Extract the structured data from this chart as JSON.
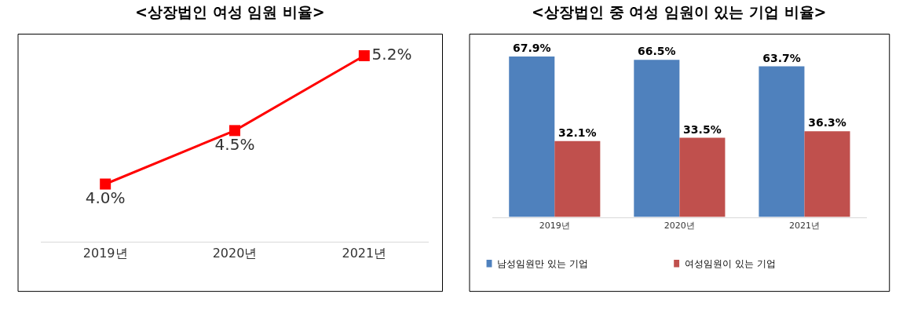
{
  "chart_data": [
    {
      "type": "line",
      "title": "<상장법인 여성 임원 비율>",
      "categories": [
        "2019년",
        "2020년",
        "2021년"
      ],
      "series": [
        {
          "color": "#ff0000",
          "values": [
            4.0,
            4.5,
            5.2
          ],
          "value_labels": [
            "4.0%",
            "4.5%",
            "5.2%"
          ]
        }
      ],
      "marker": "square",
      "tick_labels": "x"
    },
    {
      "type": "bar",
      "title": "<상장법인 중 여성 임원이 있는 기업 비율>",
      "categories": [
        "2019년",
        "2020년",
        "2021년"
      ],
      "series": [
        {
          "name": "남성임원만 있는 기업",
          "color": "#4f81bd",
          "values": [
            67.9,
            66.5,
            63.7
          ],
          "value_labels": [
            "67.9%",
            "66.5%",
            "63.7%"
          ]
        },
        {
          "name": "여성임원이 있는 기업",
          "color": "#c0504d",
          "values": [
            32.1,
            33.5,
            36.3
          ],
          "value_labels": [
            "32.1%",
            "33.5%",
            "36.3%"
          ]
        }
      ],
      "legend": "bottom",
      "tick_labels": "x"
    }
  ]
}
